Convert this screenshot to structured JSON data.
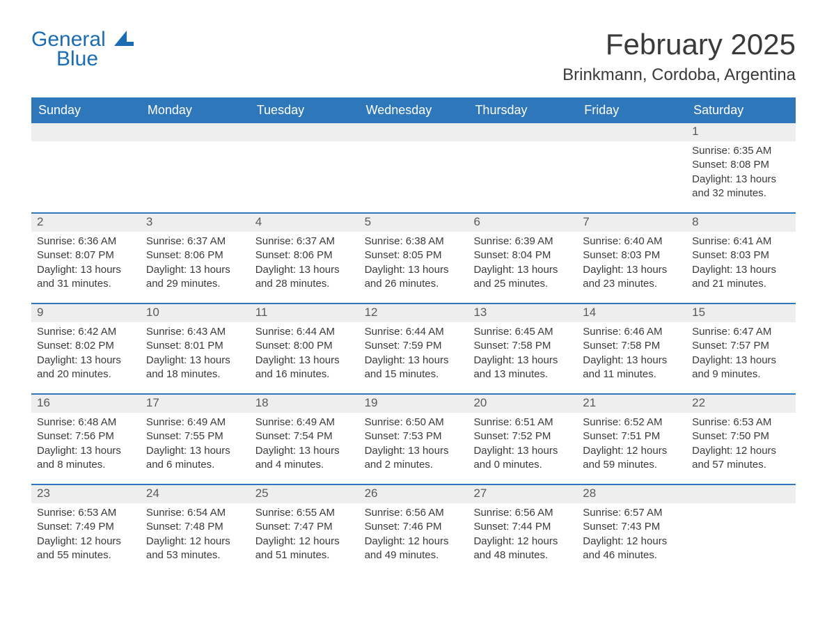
{
  "brand": {
    "general": "General",
    "blue": "Blue"
  },
  "header": {
    "month_title": "February 2025",
    "location": "Brinkmann, Cordoba, Argentina"
  },
  "colors": {
    "header_bg": "#2f77bb",
    "header_text": "#ffffff",
    "daynum_bg": "#eeeeee",
    "week_border": "#2f77bb",
    "text": "#3a3a3a",
    "brand_blue": "#1a6cb3"
  },
  "daynames": [
    "Sunday",
    "Monday",
    "Tuesday",
    "Wednesday",
    "Thursday",
    "Friday",
    "Saturday"
  ],
  "weeks": [
    [
      null,
      null,
      null,
      null,
      null,
      null,
      {
        "n": "1",
        "sunrise": "Sunrise: 6:35 AM",
        "sunset": "Sunset: 8:08 PM",
        "daylight": "Daylight: 13 hours and 32 minutes."
      }
    ],
    [
      {
        "n": "2",
        "sunrise": "Sunrise: 6:36 AM",
        "sunset": "Sunset: 8:07 PM",
        "daylight": "Daylight: 13 hours and 31 minutes."
      },
      {
        "n": "3",
        "sunrise": "Sunrise: 6:37 AM",
        "sunset": "Sunset: 8:06 PM",
        "daylight": "Daylight: 13 hours and 29 minutes."
      },
      {
        "n": "4",
        "sunrise": "Sunrise: 6:37 AM",
        "sunset": "Sunset: 8:06 PM",
        "daylight": "Daylight: 13 hours and 28 minutes."
      },
      {
        "n": "5",
        "sunrise": "Sunrise: 6:38 AM",
        "sunset": "Sunset: 8:05 PM",
        "daylight": "Daylight: 13 hours and 26 minutes."
      },
      {
        "n": "6",
        "sunrise": "Sunrise: 6:39 AM",
        "sunset": "Sunset: 8:04 PM",
        "daylight": "Daylight: 13 hours and 25 minutes."
      },
      {
        "n": "7",
        "sunrise": "Sunrise: 6:40 AM",
        "sunset": "Sunset: 8:03 PM",
        "daylight": "Daylight: 13 hours and 23 minutes."
      },
      {
        "n": "8",
        "sunrise": "Sunrise: 6:41 AM",
        "sunset": "Sunset: 8:03 PM",
        "daylight": "Daylight: 13 hours and 21 minutes."
      }
    ],
    [
      {
        "n": "9",
        "sunrise": "Sunrise: 6:42 AM",
        "sunset": "Sunset: 8:02 PM",
        "daylight": "Daylight: 13 hours and 20 minutes."
      },
      {
        "n": "10",
        "sunrise": "Sunrise: 6:43 AM",
        "sunset": "Sunset: 8:01 PM",
        "daylight": "Daylight: 13 hours and 18 minutes."
      },
      {
        "n": "11",
        "sunrise": "Sunrise: 6:44 AM",
        "sunset": "Sunset: 8:00 PM",
        "daylight": "Daylight: 13 hours and 16 minutes."
      },
      {
        "n": "12",
        "sunrise": "Sunrise: 6:44 AM",
        "sunset": "Sunset: 7:59 PM",
        "daylight": "Daylight: 13 hours and 15 minutes."
      },
      {
        "n": "13",
        "sunrise": "Sunrise: 6:45 AM",
        "sunset": "Sunset: 7:58 PM",
        "daylight": "Daylight: 13 hours and 13 minutes."
      },
      {
        "n": "14",
        "sunrise": "Sunrise: 6:46 AM",
        "sunset": "Sunset: 7:58 PM",
        "daylight": "Daylight: 13 hours and 11 minutes."
      },
      {
        "n": "15",
        "sunrise": "Sunrise: 6:47 AM",
        "sunset": "Sunset: 7:57 PM",
        "daylight": "Daylight: 13 hours and 9 minutes."
      }
    ],
    [
      {
        "n": "16",
        "sunrise": "Sunrise: 6:48 AM",
        "sunset": "Sunset: 7:56 PM",
        "daylight": "Daylight: 13 hours and 8 minutes."
      },
      {
        "n": "17",
        "sunrise": "Sunrise: 6:49 AM",
        "sunset": "Sunset: 7:55 PM",
        "daylight": "Daylight: 13 hours and 6 minutes."
      },
      {
        "n": "18",
        "sunrise": "Sunrise: 6:49 AM",
        "sunset": "Sunset: 7:54 PM",
        "daylight": "Daylight: 13 hours and 4 minutes."
      },
      {
        "n": "19",
        "sunrise": "Sunrise: 6:50 AM",
        "sunset": "Sunset: 7:53 PM",
        "daylight": "Daylight: 13 hours and 2 minutes."
      },
      {
        "n": "20",
        "sunrise": "Sunrise: 6:51 AM",
        "sunset": "Sunset: 7:52 PM",
        "daylight": "Daylight: 13 hours and 0 minutes."
      },
      {
        "n": "21",
        "sunrise": "Sunrise: 6:52 AM",
        "sunset": "Sunset: 7:51 PM",
        "daylight": "Daylight: 12 hours and 59 minutes."
      },
      {
        "n": "22",
        "sunrise": "Sunrise: 6:53 AM",
        "sunset": "Sunset: 7:50 PM",
        "daylight": "Daylight: 12 hours and 57 minutes."
      }
    ],
    [
      {
        "n": "23",
        "sunrise": "Sunrise: 6:53 AM",
        "sunset": "Sunset: 7:49 PM",
        "daylight": "Daylight: 12 hours and 55 minutes."
      },
      {
        "n": "24",
        "sunrise": "Sunrise: 6:54 AM",
        "sunset": "Sunset: 7:48 PM",
        "daylight": "Daylight: 12 hours and 53 minutes."
      },
      {
        "n": "25",
        "sunrise": "Sunrise: 6:55 AM",
        "sunset": "Sunset: 7:47 PM",
        "daylight": "Daylight: 12 hours and 51 minutes."
      },
      {
        "n": "26",
        "sunrise": "Sunrise: 6:56 AM",
        "sunset": "Sunset: 7:46 PM",
        "daylight": "Daylight: 12 hours and 49 minutes."
      },
      {
        "n": "27",
        "sunrise": "Sunrise: 6:56 AM",
        "sunset": "Sunset: 7:44 PM",
        "daylight": "Daylight: 12 hours and 48 minutes."
      },
      {
        "n": "28",
        "sunrise": "Sunrise: 6:57 AM",
        "sunset": "Sunset: 7:43 PM",
        "daylight": "Daylight: 12 hours and 46 minutes."
      },
      null
    ]
  ]
}
